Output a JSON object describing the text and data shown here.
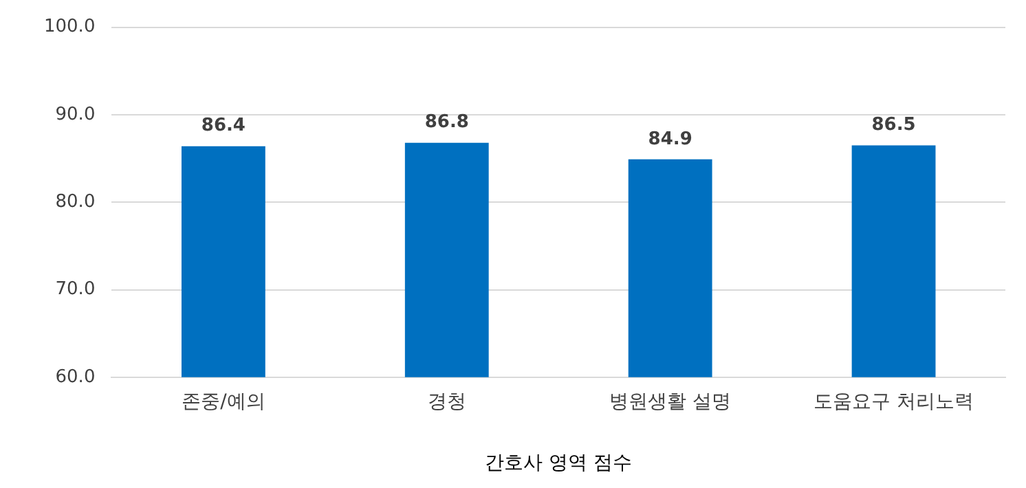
{
  "chart_data": {
    "type": "bar",
    "xlabel": "간호사 영역 점수",
    "categories": [
      "존중/예의",
      "경청",
      "병원생활 설명",
      "도움요구 처리노력"
    ],
    "values": [
      86.4,
      86.8,
      84.9,
      86.5
    ],
    "color": "#0070c0",
    "ylim": [
      60,
      100
    ],
    "yticks": [
      {
        "value": 60,
        "label": "60.0"
      },
      {
        "value": 70,
        "label": "70.0"
      },
      {
        "value": 80,
        "label": "80.0"
      },
      {
        "value": 90,
        "label": "90.0"
      },
      {
        "value": 100,
        "label": "100.0"
      }
    ],
    "grid": "y",
    "data_labels": true
  }
}
